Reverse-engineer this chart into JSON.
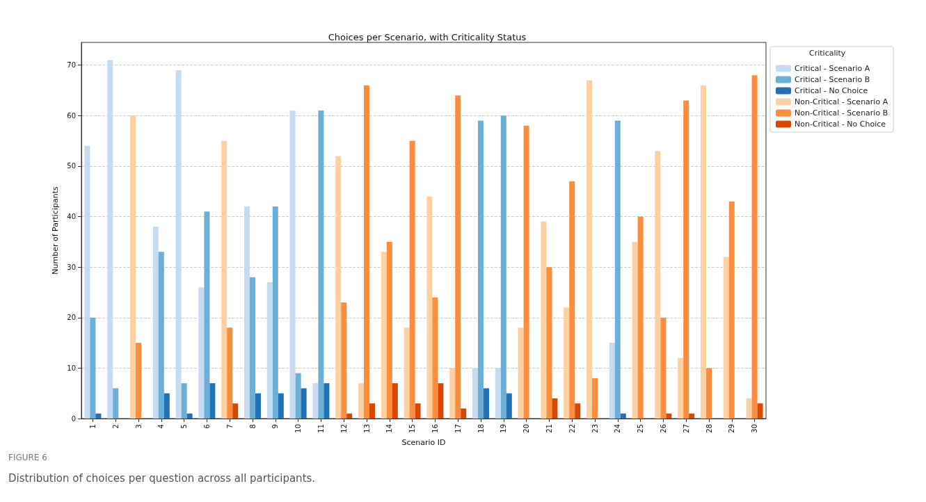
{
  "chart_data": {
    "type": "bar",
    "title": "Choices per Scenario, with Criticality Status",
    "xlabel": "Scenario ID",
    "ylabel": "Number of Participants",
    "legend_title": "Criticality",
    "categories": [
      "1",
      "2",
      "3",
      "4",
      "5",
      "6",
      "7",
      "8",
      "9",
      "10",
      "11",
      "12",
      "13",
      "14",
      "15",
      "16",
      "17",
      "18",
      "19",
      "20",
      "21",
      "22",
      "23",
      "24",
      "25",
      "26",
      "27",
      "28",
      "29",
      "30"
    ],
    "series": [
      {
        "name": "Critical - Scenario A",
        "color": "#c6dbef",
        "values": [
          54,
          71,
          null,
          38,
          69,
          26,
          null,
          42,
          27,
          61,
          7,
          null,
          null,
          null,
          null,
          null,
          null,
          10,
          10,
          null,
          null,
          null,
          null,
          15,
          null,
          null,
          null,
          null,
          null,
          null
        ]
      },
      {
        "name": "Critical - Scenario B",
        "color": "#6baed6",
        "values": [
          20,
          6,
          null,
          33,
          7,
          41,
          null,
          28,
          42,
          9,
          61,
          null,
          null,
          null,
          null,
          null,
          null,
          59,
          60,
          null,
          null,
          null,
          null,
          59,
          null,
          null,
          null,
          null,
          null,
          null
        ]
      },
      {
        "name": "Critical - No Choice",
        "color": "#2171b5",
        "values": [
          1,
          0,
          null,
          5,
          1,
          7,
          null,
          5,
          5,
          6,
          7,
          null,
          null,
          null,
          null,
          null,
          null,
          6,
          5,
          null,
          null,
          null,
          null,
          1,
          null,
          null,
          null,
          null,
          null,
          null
        ]
      },
      {
        "name": "Non-Critical - Scenario A",
        "color": "#fdd0a2",
        "values": [
          null,
          null,
          60,
          null,
          null,
          null,
          55,
          null,
          null,
          null,
          null,
          52,
          7,
          33,
          18,
          44,
          10,
          null,
          null,
          18,
          39,
          22,
          67,
          null,
          35,
          53,
          12,
          66,
          32,
          4
        ]
      },
      {
        "name": "Non-Critical - Scenario B",
        "color": "#fd8d3c",
        "values": [
          null,
          null,
          15,
          null,
          null,
          null,
          18,
          null,
          null,
          null,
          null,
          23,
          66,
          35,
          55,
          24,
          64,
          null,
          null,
          58,
          30,
          47,
          8,
          null,
          40,
          20,
          63,
          10,
          43,
          68
        ]
      },
      {
        "name": "Non-Critical - No Choice",
        "color": "#d94801",
        "values": [
          null,
          null,
          0,
          null,
          null,
          null,
          3,
          null,
          null,
          null,
          null,
          1,
          3,
          7,
          3,
          7,
          2,
          null,
          null,
          0,
          4,
          3,
          0,
          null,
          0,
          1,
          1,
          0,
          0,
          3
        ]
      }
    ],
    "ylim": [
      0,
      74.5
    ],
    "yticks": [
      0,
      10,
      20,
      30,
      40,
      50,
      60,
      70
    ],
    "grid": "y",
    "legend": "right",
    "annotations": [
      "FIGURE 6",
      "Distribution of choices per question across all participants."
    ]
  }
}
